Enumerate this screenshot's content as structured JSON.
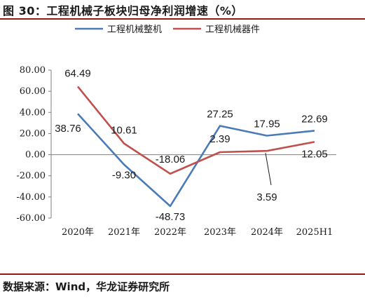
{
  "header": {
    "title": "图 30：工程机械子板块归母净利润增速（%）"
  },
  "footer": {
    "source": "数据来源：Wind，华龙证券研究所"
  },
  "chart_data": {
    "type": "line",
    "title": "",
    "xlabel": "",
    "ylabel": "",
    "categories": [
      "2020年",
      "2021年",
      "2022年",
      "2023年",
      "2024年",
      "2025H1"
    ],
    "ylim": [
      -60,
      80
    ],
    "yticks": [
      "80.00",
      "60.00",
      "40.00",
      "20.00",
      "0.00",
      "-20.00",
      "-40.00",
      "-60.00"
    ],
    "grid": false,
    "legend": "top-center",
    "series": [
      {
        "name": "工程机械整机",
        "color": "#4a7bb7",
        "values": [
          38.76,
          -9.3,
          -48.73,
          27.25,
          17.95,
          22.69
        ],
        "labels": [
          "38.76",
          "-9.30",
          "-48.73",
          "27.25",
          "17.95",
          "22.69"
        ]
      },
      {
        "name": "工程机械器件",
        "color": "#c0504d",
        "values": [
          64.49,
          10.61,
          -18.06,
          2.39,
          3.59,
          12.05
        ],
        "labels": [
          "64.49",
          "10.61",
          "-18.06",
          "2.39",
          "3.59",
          "12.05"
        ]
      }
    ]
  }
}
